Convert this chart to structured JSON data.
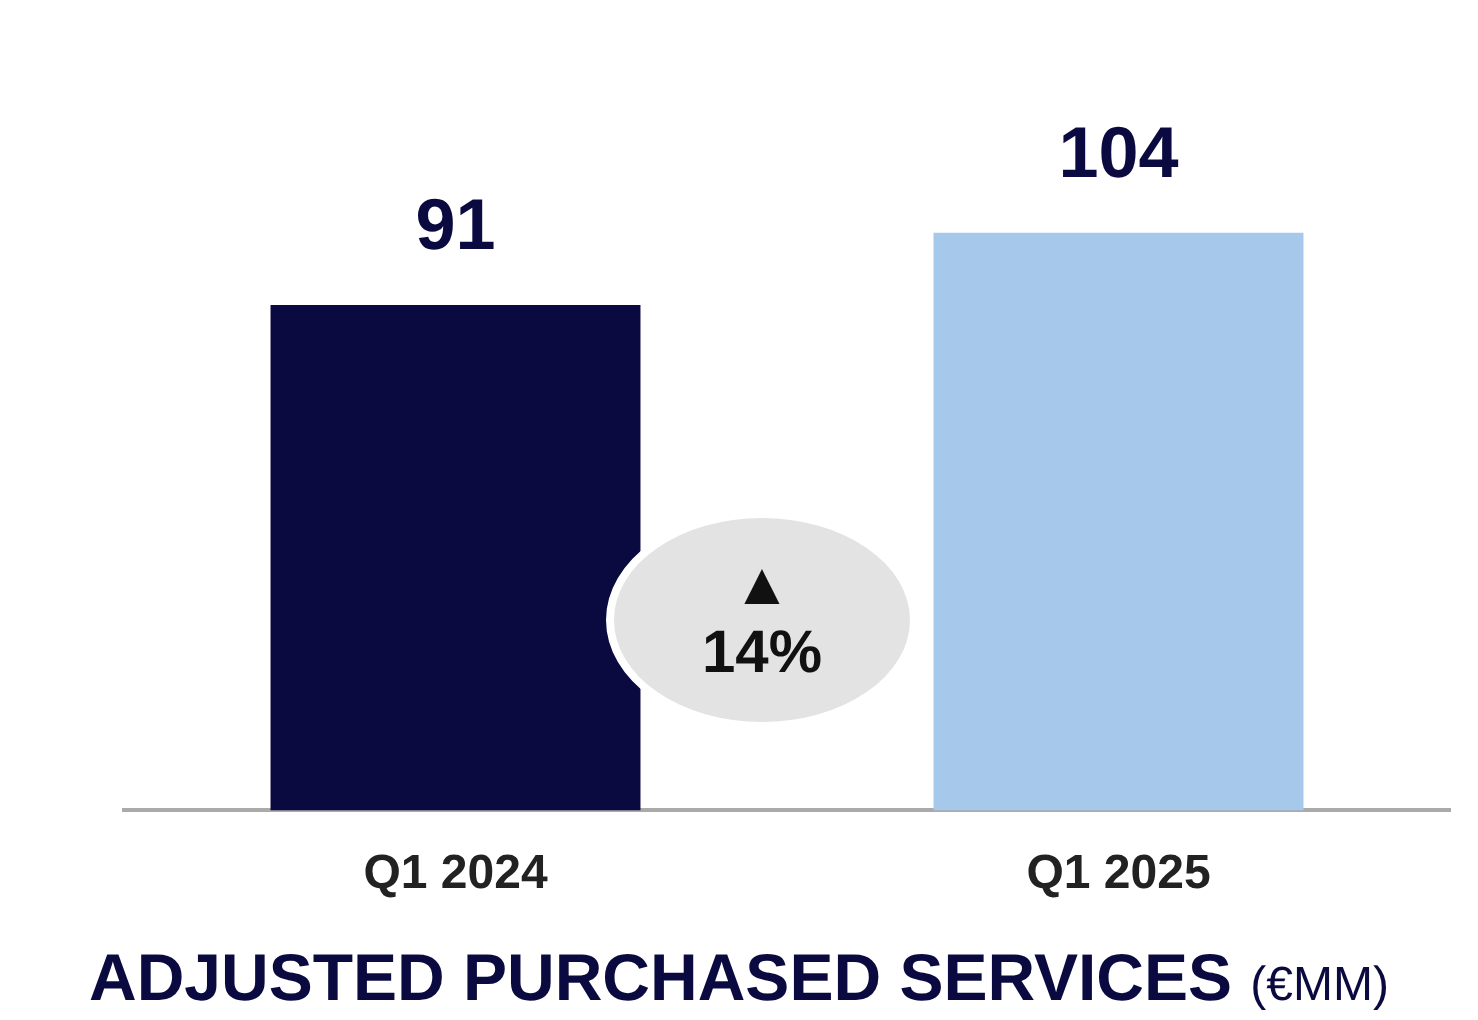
{
  "chart_data": {
    "type": "bar",
    "title": "ADJUSTED PURCHASED SERVICES",
    "subtitle": "(€MM)",
    "categories": [
      "Q1 2024",
      "Q1 2025"
    ],
    "values": [
      91,
      104
    ],
    "colors": [
      "#0a0a40",
      "#a6c8ea"
    ],
    "tick_labels": "x",
    "grid": false,
    "data_labels": true,
    "annotations": [
      "▲ 14%"
    ]
  }
}
